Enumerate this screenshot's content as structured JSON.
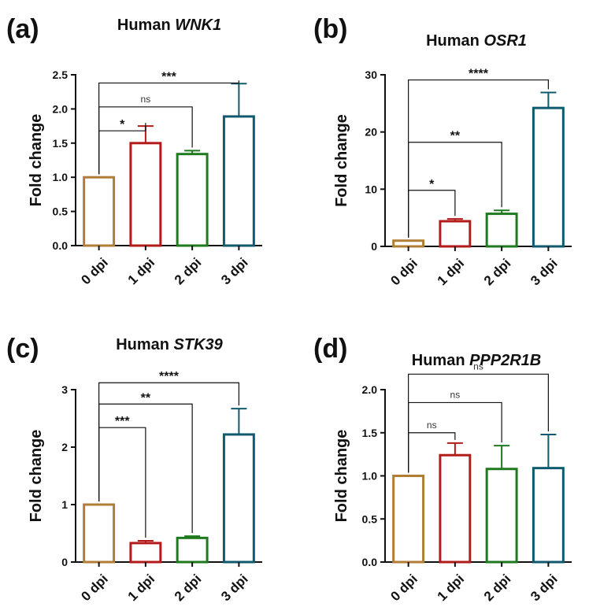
{
  "chart_data": [
    {
      "type": "bar",
      "panel_label": "(a)",
      "title_prefix": "Human ",
      "title_gene": "WNK1",
      "ylabel": "Fold change",
      "categories": [
        "0 dpi",
        "1 dpi",
        "2 dpi",
        "3 dpi"
      ],
      "values": [
        1.0,
        1.5,
        1.34,
        1.89
      ],
      "errors": [
        0,
        0.25,
        0.05,
        0.48
      ],
      "ylim": [
        0,
        2.5
      ],
      "yticks": [
        "0.0",
        "0.5",
        "1.0",
        "1.5",
        "2.0",
        "2.5"
      ],
      "colors": [
        "#b07d34",
        "#b31b1b",
        "#1f7a1f",
        "#0f5a6e"
      ],
      "significance": [
        {
          "from": 0,
          "to": 1,
          "label": "*",
          "y": 1.68
        },
        {
          "from": 0,
          "to": 2,
          "label": "ns",
          "y": 2.03
        },
        {
          "from": 0,
          "to": 3,
          "label": "***",
          "y": 2.38
        }
      ]
    },
    {
      "type": "bar",
      "panel_label": "(b)",
      "title_prefix": "Human ",
      "title_gene": "OSR1",
      "ylabel": "Fold change",
      "categories": [
        "0 dpi",
        "1 dpi",
        "2 dpi",
        "3 dpi"
      ],
      "values": [
        1.0,
        4.4,
        5.7,
        24.2
      ],
      "errors": [
        0,
        0.4,
        0.6,
        2.7
      ],
      "ylim": [
        0,
        30
      ],
      "yticks": [
        "0",
        "10",
        "20",
        "30"
      ],
      "colors": [
        "#b07d34",
        "#b31b1b",
        "#1f7a1f",
        "#0f5a6e"
      ],
      "significance": [
        {
          "from": 0,
          "to": 1,
          "label": "*",
          "y": 9.8
        },
        {
          "from": 0,
          "to": 2,
          "label": "**",
          "y": 18.2
        },
        {
          "from": 0,
          "to": 3,
          "label": "****",
          "y": 29.1
        }
      ]
    },
    {
      "type": "bar",
      "panel_label": "(c)",
      "title_prefix": "Human ",
      "title_gene": "STK39",
      "ylabel": "Fold change",
      "categories": [
        "0 dpi",
        "1 dpi",
        "2 dpi",
        "3 dpi"
      ],
      "values": [
        1.0,
        0.33,
        0.42,
        2.22
      ],
      "errors": [
        0,
        0.04,
        0.03,
        0.45
      ],
      "ylim": [
        0,
        3
      ],
      "yticks": [
        "0",
        "1",
        "2",
        "3"
      ],
      "colors": [
        "#b07d34",
        "#b31b1b",
        "#1f7a1f",
        "#0f5a6e"
      ],
      "significance": [
        {
          "from": 0,
          "to": 1,
          "label": "***",
          "y": 2.34
        },
        {
          "from": 0,
          "to": 2,
          "label": "**",
          "y": 2.75
        },
        {
          "from": 0,
          "to": 3,
          "label": "****",
          "y": 3.12
        }
      ]
    },
    {
      "type": "bar",
      "panel_label": "(d)",
      "title_prefix": "Human ",
      "title_gene": "PPP2R1B",
      "ylabel": "Fold change",
      "categories": [
        "0 dpi",
        "1 dpi",
        "2 dpi",
        "3 dpi"
      ],
      "values": [
        1.0,
        1.24,
        1.08,
        1.09
      ],
      "errors": [
        0,
        0.14,
        0.27,
        0.39
      ],
      "ylim": [
        0,
        2.0
      ],
      "yticks": [
        "0.0",
        "0.5",
        "1.0",
        "1.5",
        "2.0"
      ],
      "colors": [
        "#b07d34",
        "#b31b1b",
        "#1f7a1f",
        "#0f5a6e"
      ],
      "significance": [
        {
          "from": 0,
          "to": 1,
          "label": "ns",
          "y": 1.5
        },
        {
          "from": 0,
          "to": 2,
          "label": "ns",
          "y": 1.85
        },
        {
          "from": 0,
          "to": 3,
          "label": "ns",
          "y": 2.18
        }
      ]
    }
  ]
}
